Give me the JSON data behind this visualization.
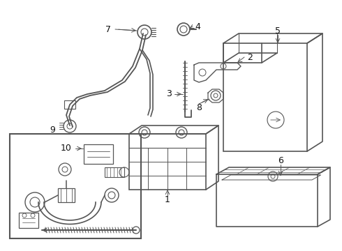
{
  "bg_color": "#ffffff",
  "line_color": "#555555",
  "label_color": "#111111",
  "fig_width": 4.9,
  "fig_height": 3.6,
  "dpi": 100
}
